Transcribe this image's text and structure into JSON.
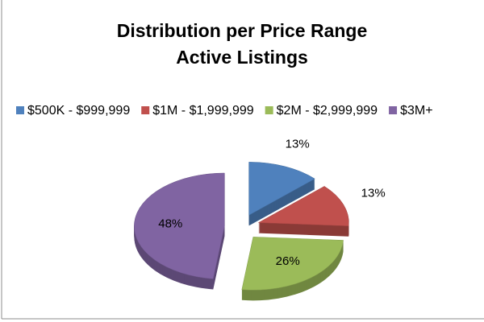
{
  "chart_data": {
    "type": "pie",
    "title": "Distribution per Price Range",
    "subtitle": "Active Listings",
    "categories": [
      "$500K - $999,999",
      "$1M - $1,999,999",
      "$2M - $2,999,999",
      "$3M+"
    ],
    "values": [
      13,
      13,
      26,
      48
    ],
    "value_labels": [
      "13%",
      "13%",
      "26%",
      "48%"
    ],
    "colors": [
      "#4f81bd",
      "#c0504d",
      "#9bbb59",
      "#8064a2"
    ],
    "legend": "top"
  }
}
